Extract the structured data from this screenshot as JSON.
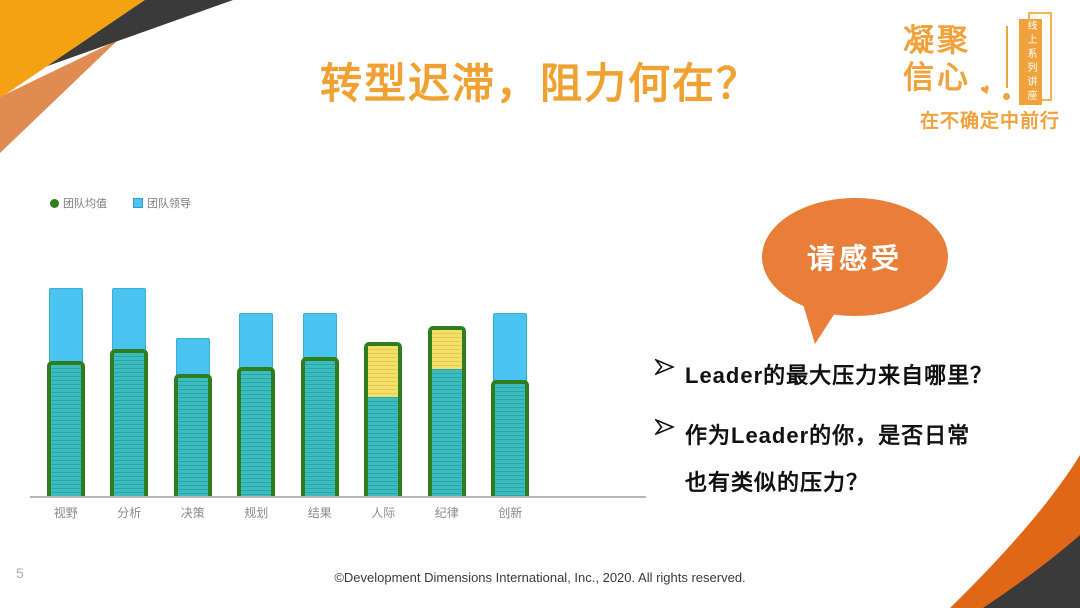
{
  "slide": {
    "title": "转型迟滞，阻力何在？",
    "page_number": "5",
    "footer": "©Development Dimensions International, Inc., 2020. All rights reserved."
  },
  "logo": {
    "line1": "凝聚",
    "line2": "信心",
    "heart": "♥",
    "banner_text": "线上系列讲座",
    "tagline": "在不确定中前行"
  },
  "bubble": {
    "text": "请感受"
  },
  "bullets": [
    {
      "lines": [
        "Leader的最大压力来自哪里？"
      ]
    },
    {
      "lines": [
        "作为Leader的你，是否日常",
        "也有类似的压力？"
      ]
    }
  ],
  "chart_data": {
    "type": "bar",
    "title": "",
    "categories": [
      "视野",
      "分析",
      "决策",
      "规划",
      "结果",
      "人际",
      "纪律",
      "创新"
    ],
    "series": [
      {
        "name": "团队均值",
        "values": [
          65,
          71,
          59,
          62,
          67,
          74,
          82,
          56
        ],
        "color": "#2e7d1f",
        "style": "green-outlined bar, teal hatched fill; portion exceeding 团队领导 hatched yellow"
      },
      {
        "name": "团队领导",
        "values": [
          100,
          100,
          76,
          88,
          88,
          50,
          63,
          88
        ],
        "color": "#4ac3f0",
        "style": "plain light-blue bar behind"
      }
    ],
    "ylim": [
      0,
      100
    ],
    "grid": false,
    "value_axis_shown": false,
    "legend_position": "top-left",
    "highlight": "人际 and 纪律: 团队均值 exceeds 团队领导, excess shown yellow-hatched"
  },
  "colors": {
    "corner_orange": "#f5a114",
    "corner_light_orange": "#e08b52",
    "corner_dark": "#3a3a3a",
    "title_orange": "#efa232",
    "logo_orange": "#f0a23c",
    "bubble_orange": "#e87e38",
    "bar_blue": "#4ac3f0",
    "bar_green_border": "#2e7d1f",
    "bar_teal_fill": "#35b9ba",
    "bar_yellow_fill": "#f2de5e",
    "axis_gray": "#b5b5b5",
    "label_gray": "#8a8a8a"
  }
}
